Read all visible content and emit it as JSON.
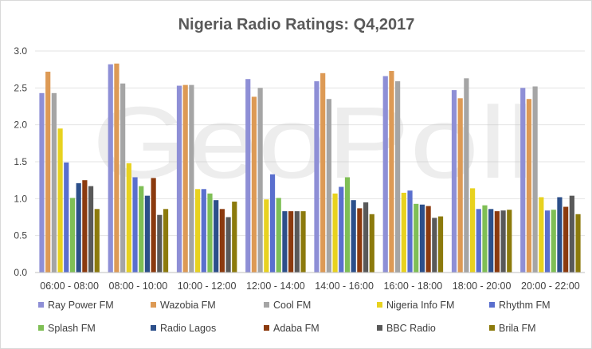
{
  "watermark": "GeoPoll",
  "chart_data": {
    "type": "bar",
    "title": "Nigeria Radio Ratings: Q4,2017",
    "xlabel": "",
    "ylabel": "",
    "ylim": [
      0,
      3.0
    ],
    "yticks": [
      "0.0",
      "0.5",
      "1.0",
      "1.5",
      "2.0",
      "2.5",
      "3.0"
    ],
    "grid": true,
    "legend_position": "bottom",
    "categories": [
      "06:00 - 08:00",
      "08:00 - 10:00",
      "10:00 - 12:00",
      "12:00 - 14:00",
      "14:00 - 16:00",
      "16:00 - 18:00",
      "18:00 - 20:00",
      "20:00 - 22:00"
    ],
    "series": [
      {
        "name": "Ray Power FM",
        "color": "#8e8fd6",
        "values": [
          2.43,
          2.82,
          2.53,
          2.62,
          2.59,
          2.66,
          2.47,
          2.5
        ]
      },
      {
        "name": "Wazobia FM",
        "color": "#dd9a55",
        "values": [
          2.72,
          2.83,
          2.54,
          2.38,
          2.7,
          2.73,
          2.36,
          2.35
        ]
      },
      {
        "name": "Cool FM",
        "color": "#a5a5a5",
        "values": [
          2.43,
          2.56,
          2.54,
          2.5,
          2.35,
          2.59,
          2.63,
          2.52
        ]
      },
      {
        "name": "Nigeria Info FM",
        "color": "#e8d21f",
        "values": [
          1.95,
          1.48,
          1.13,
          0.99,
          1.07,
          1.08,
          1.14,
          1.02
        ]
      },
      {
        "name": "Rhythm FM",
        "color": "#5a6fce",
        "values": [
          1.49,
          1.29,
          1.13,
          1.33,
          1.16,
          1.11,
          0.86,
          0.84
        ]
      },
      {
        "name": "Splash FM",
        "color": "#7fbf55",
        "values": [
          1.01,
          1.17,
          1.07,
          1.01,
          1.29,
          0.93,
          0.91,
          0.85
        ]
      },
      {
        "name": "Radio Lagos",
        "color": "#2c4f8a",
        "values": [
          1.21,
          1.04,
          0.98,
          0.83,
          0.98,
          0.92,
          0.86,
          1.02
        ]
      },
      {
        "name": "Adaba FM",
        "color": "#8b3a0e",
        "values": [
          1.25,
          1.28,
          0.86,
          0.83,
          0.87,
          0.9,
          0.83,
          0.89
        ]
      },
      {
        "name": "BBC Radio",
        "color": "#595959",
        "values": [
          1.17,
          0.78,
          0.75,
          0.83,
          0.95,
          0.74,
          0.84,
          1.04
        ]
      },
      {
        "name": "Brila FM",
        "color": "#8c7a0c",
        "values": [
          0.86,
          0.86,
          0.96,
          0.83,
          0.79,
          0.76,
          0.85,
          0.79
        ]
      }
    ]
  }
}
